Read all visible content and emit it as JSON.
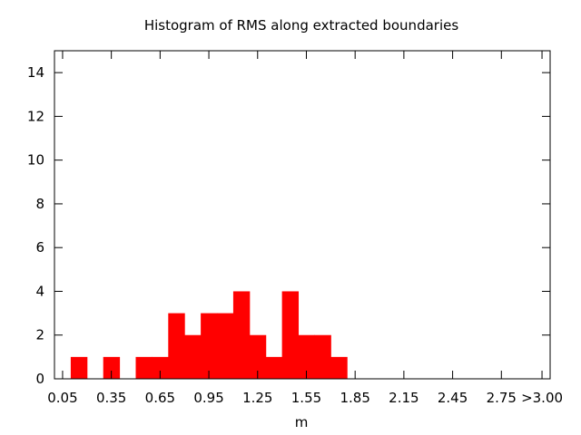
{
  "chart_data": {
    "type": "bar",
    "title": "Histogram of RMS along extracted boundaries",
    "xlabel": "m",
    "ylabel": "",
    "ylim": [
      0,
      15
    ],
    "xlim": [
      0.0,
      3.05
    ],
    "bin_width": 0.1,
    "bar_color": "#ff0000",
    "grid": false,
    "legend": "none",
    "x_ticks": [
      {
        "value": 0.05,
        "label": "0.05"
      },
      {
        "value": 0.35,
        "label": "0.35"
      },
      {
        "value": 0.65,
        "label": "0.65"
      },
      {
        "value": 0.95,
        "label": "0.95"
      },
      {
        "value": 1.25,
        "label": "1.25"
      },
      {
        "value": 1.55,
        "label": "1.55"
      },
      {
        "value": 1.85,
        "label": "1.85"
      },
      {
        "value": 2.15,
        "label": "2.15"
      },
      {
        "value": 2.45,
        "label": "2.45"
      },
      {
        "value": 2.75,
        "label": "2.75"
      },
      {
        "value": 3.0,
        "label": ">3.00"
      }
    ],
    "y_ticks": [
      0,
      2,
      4,
      6,
      8,
      10,
      12,
      14
    ],
    "x": [
      0.15,
      0.25,
      0.35,
      0.45,
      0.55,
      0.65,
      0.75,
      0.85,
      0.95,
      1.05,
      1.15,
      1.25,
      1.35,
      1.45,
      1.55,
      1.65,
      1.75,
      1.85,
      1.95,
      2.05,
      2.15,
      2.25,
      2.35,
      2.45,
      2.55,
      2.65,
      2.75,
      2.85,
      2.95
    ],
    "values": [
      1,
      0,
      1,
      0,
      1,
      1,
      3,
      2,
      3,
      3,
      4,
      2,
      1,
      4,
      2,
      2,
      1,
      0,
      0,
      0,
      0,
      0,
      0,
      0,
      0,
      0,
      0,
      0,
      0
    ]
  }
}
